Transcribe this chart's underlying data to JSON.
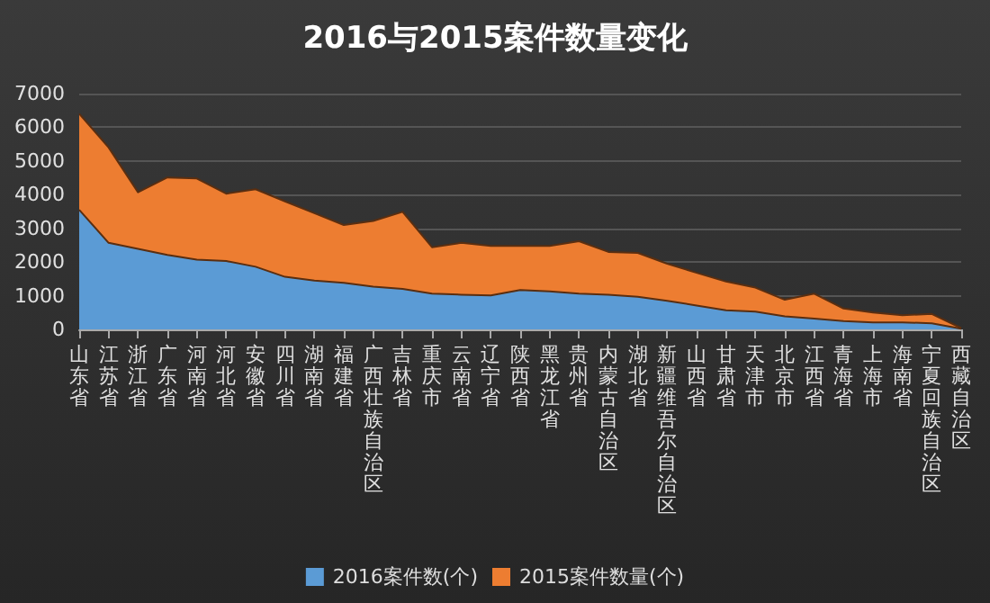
{
  "chart_data": {
    "type": "area",
    "title": "2016与2015案件数量变化",
    "stacked": true,
    "categories": [
      "山东省",
      "江苏省",
      "浙江省",
      "广东省",
      "河南省",
      "河北省",
      "安徽省",
      "四川省",
      "湖南省",
      "福建省",
      "广西壮族自治区",
      "吉林省",
      "重庆市",
      "云南省",
      "辽宁省",
      "陕西省",
      "黑龙江省",
      "贵州省",
      "内蒙古自治区",
      "湖北省",
      "新疆维吾尔自治区",
      "山西省",
      "甘肃省",
      "天津市",
      "北京市",
      "江西省",
      "青海省",
      "上海市",
      "海南省",
      "宁夏回族自治区",
      "西藏自治区"
    ],
    "series": [
      {
        "name": "2016案件数(个)",
        "color": "#5b9bd5",
        "values": [
          3550,
          2570,
          2390,
          2210,
          2070,
          2030,
          1860,
          1560,
          1450,
          1380,
          1270,
          1200,
          1060,
          1030,
          1010,
          1170,
          1130,
          1060,
          1030,
          970,
          850,
          710,
          570,
          530,
          390,
          320,
          250,
          210,
          210,
          180,
          20
        ]
      },
      {
        "name": "2015案件数量(个)",
        "color": "#ed7d31",
        "values": [
          2850,
          2830,
          1680,
          2300,
          2410,
          2000,
          2300,
          2240,
          2000,
          1720,
          1950,
          2290,
          1380,
          1540,
          1470,
          1310,
          1350,
          1560,
          1270,
          1300,
          1100,
          970,
          850,
          710,
          490,
          740,
          370,
          290,
          210,
          280,
          20
        ]
      }
    ],
    "ylim": [
      0,
      7000
    ],
    "yticks": [
      0,
      1000,
      2000,
      3000,
      4000,
      5000,
      6000,
      7000
    ],
    "grid": "y",
    "legend": "bottom"
  }
}
